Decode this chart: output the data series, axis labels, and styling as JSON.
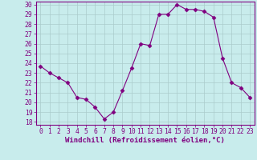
{
  "x": [
    0,
    1,
    2,
    3,
    4,
    5,
    6,
    7,
    8,
    9,
    10,
    11,
    12,
    13,
    14,
    15,
    16,
    17,
    18,
    19,
    20,
    21,
    22,
    23
  ],
  "y": [
    23.7,
    23.0,
    22.5,
    22.0,
    20.5,
    20.3,
    19.5,
    18.3,
    19.0,
    21.2,
    23.5,
    26.0,
    25.8,
    29.0,
    29.0,
    30.0,
    29.5,
    29.5,
    29.3,
    28.7,
    24.5,
    22.0,
    21.5,
    20.5
  ],
  "line_color": "#800080",
  "marker": "D",
  "marker_size": 2.5,
  "bg_color": "#c8ecec",
  "grid_color": "#aacccc",
  "xlabel": "Windchill (Refroidissement éolien,°C)",
  "xlabel_color": "#800080",
  "tick_color": "#800080",
  "ylim": [
    18,
    30
  ],
  "xlim": [
    -0.5,
    23.5
  ],
  "yticks": [
    18,
    19,
    20,
    21,
    22,
    23,
    24,
    25,
    26,
    27,
    28,
    29,
    30
  ],
  "xticks": [
    0,
    1,
    2,
    3,
    4,
    5,
    6,
    7,
    8,
    9,
    10,
    11,
    12,
    13,
    14,
    15,
    16,
    17,
    18,
    19,
    20,
    21,
    22,
    23
  ],
  "font_size_label": 6.5,
  "font_size_tick": 5.8
}
